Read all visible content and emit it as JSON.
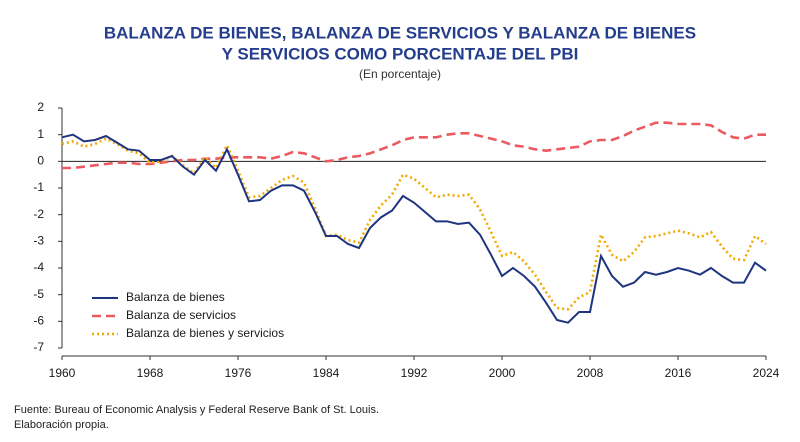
{
  "chart_data": {
    "type": "line",
    "title": [
      "BALANZA DE BIENES, BALANZA DE SERVICIOS Y BALANZA DE BIENES",
      "Y SERVICIOS COMO PORCENTAJE DEL PBI"
    ],
    "subtitle": "(En porcentaje)",
    "footnote": [
      "Fuente: Bureau of Economic Analysis y Federal Reserve Bank of St. Louis.",
      "Elaboración propia."
    ],
    "x": [
      1960,
      1961,
      1962,
      1963,
      1964,
      1965,
      1966,
      1967,
      1968,
      1969,
      1970,
      1971,
      1972,
      1973,
      1974,
      1975,
      1976,
      1977,
      1978,
      1979,
      1980,
      1981,
      1982,
      1983,
      1984,
      1985,
      1986,
      1987,
      1988,
      1989,
      1990,
      1991,
      1992,
      1993,
      1994,
      1995,
      1996,
      1997,
      1998,
      1999,
      2000,
      2001,
      2002,
      2003,
      2004,
      2005,
      2006,
      2007,
      2008,
      2009,
      2010,
      2011,
      2012,
      2013,
      2014,
      2015,
      2016,
      2017,
      2018,
      2019,
      2020,
      2021,
      2022,
      2023,
      2024
    ],
    "xlim": [
      1960,
      2024
    ],
    "xticks": [
      1960,
      1968,
      1976,
      1984,
      1992,
      2000,
      2008,
      2016,
      2024
    ],
    "ylim": [
      -7,
      2
    ],
    "yticks": [
      -7,
      -6,
      -5,
      -4,
      -3,
      -2,
      -1,
      0,
      1,
      2
    ],
    "legend": "lower left",
    "series": [
      {
        "name": "Balanza de bienes",
        "color": "#1f3480",
        "style": "solid",
        "values": [
          0.9,
          1.0,
          0.75,
          0.8,
          0.95,
          0.7,
          0.45,
          0.4,
          0.05,
          0.05,
          0.2,
          -0.2,
          -0.5,
          0.05,
          -0.35,
          0.45,
          -0.5,
          -1.5,
          -1.45,
          -1.1,
          -0.9,
          -0.9,
          -1.1,
          -1.9,
          -2.8,
          -2.8,
          -3.1,
          -3.25,
          -2.5,
          -2.1,
          -1.85,
          -1.3,
          -1.55,
          -1.9,
          -2.25,
          -2.25,
          -2.35,
          -2.3,
          -2.75,
          -3.5,
          -4.3,
          -4.0,
          -4.3,
          -4.7,
          -5.3,
          -5.95,
          -6.05,
          -5.65,
          -5.65,
          -3.55,
          -4.3,
          -4.7,
          -4.55,
          -4.15,
          -4.25,
          -4.15,
          -4.0,
          -4.1,
          -4.25,
          -4.0,
          -4.3,
          -4.55,
          -4.55,
          -3.8,
          -4.1
        ]
      },
      {
        "name": "Balanza de servicios",
        "color": "#ea5a5f",
        "style": "dashed",
        "values": [
          -0.25,
          -0.25,
          -0.2,
          -0.15,
          -0.1,
          -0.05,
          -0.05,
          -0.1,
          -0.1,
          -0.05,
          0.0,
          0.05,
          0.05,
          0.1,
          0.1,
          0.15,
          0.15,
          0.15,
          0.15,
          0.1,
          0.2,
          0.35,
          0.3,
          0.15,
          0.0,
          0.05,
          0.15,
          0.2,
          0.3,
          0.45,
          0.6,
          0.8,
          0.9,
          0.9,
          0.9,
          1.0,
          1.05,
          1.05,
          0.95,
          0.85,
          0.75,
          0.6,
          0.55,
          0.45,
          0.4,
          0.45,
          0.5,
          0.55,
          0.75,
          0.8,
          0.8,
          0.95,
          1.15,
          1.3,
          1.45,
          1.45,
          1.4,
          1.4,
          1.4,
          1.35,
          1.1,
          0.9,
          0.85,
          1.0,
          1.0
        ]
      },
      {
        "name": "Balanza de bienes y servicios",
        "color": "#f2a900",
        "style": "dotted",
        "values": [
          0.65,
          0.75,
          0.55,
          0.65,
          0.85,
          0.65,
          0.4,
          0.3,
          -0.05,
          0.0,
          0.2,
          -0.15,
          -0.45,
          0.15,
          -0.25,
          0.6,
          -0.35,
          -1.35,
          -1.3,
          -1.0,
          -0.7,
          -0.55,
          -0.8,
          -1.75,
          -2.8,
          -2.75,
          -2.95,
          -3.05,
          -2.2,
          -1.65,
          -1.25,
          -0.5,
          -0.65,
          -1.0,
          -1.35,
          -1.25,
          -1.3,
          -1.25,
          -1.8,
          -2.65,
          -3.55,
          -3.4,
          -3.75,
          -4.25,
          -4.9,
          -5.5,
          -5.55,
          -5.1,
          -4.9,
          -2.75,
          -3.5,
          -3.75,
          -3.4,
          -2.85,
          -2.8,
          -2.7,
          -2.6,
          -2.7,
          -2.85,
          -2.65,
          -3.2,
          -3.65,
          -3.7,
          -2.8,
          -3.1
        ]
      }
    ]
  }
}
